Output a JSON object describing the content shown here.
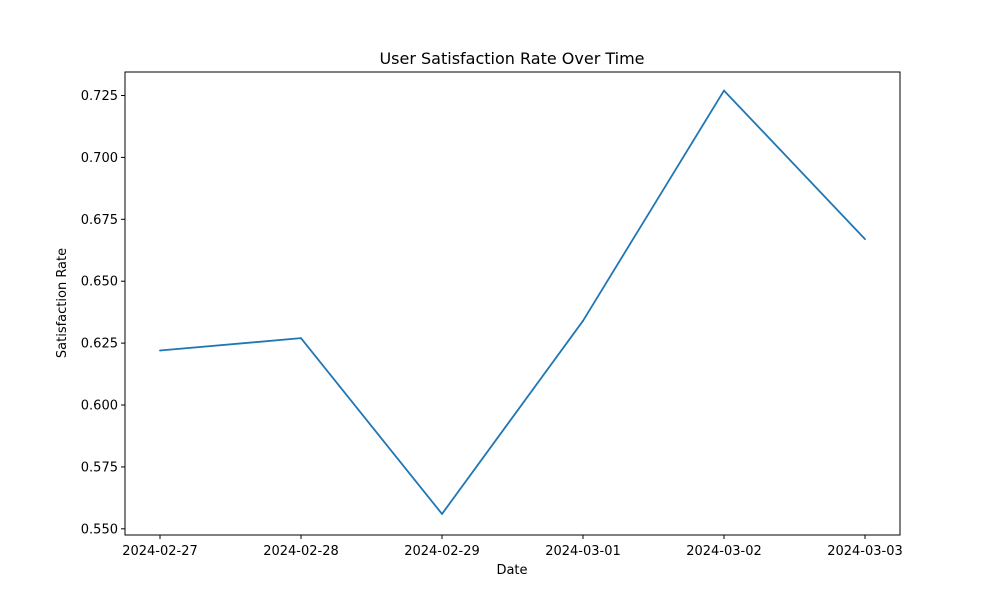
{
  "chart_data": {
    "type": "line",
    "title": "User Satisfaction Rate Over Time",
    "xlabel": "Date",
    "ylabel": "Satisfaction Rate",
    "x": [
      "2024-02-27",
      "2024-02-28",
      "2024-02-29",
      "2024-03-01",
      "2024-03-02",
      "2024-03-03"
    ],
    "series": [
      {
        "values": [
          0.622,
          0.627,
          0.556,
          0.634,
          0.727,
          0.667
        ],
        "color": "#1f77b4"
      }
    ],
    "ylim": [
      0.5475,
      0.7345
    ],
    "yticks": [
      0.55,
      0.575,
      0.6,
      0.625,
      0.65,
      0.675,
      0.7,
      0.725
    ],
    "ytick_labels": [
      "0.550",
      "0.575",
      "0.600",
      "0.625",
      "0.650",
      "0.675",
      "0.700",
      "0.725"
    ],
    "grid": false
  }
}
